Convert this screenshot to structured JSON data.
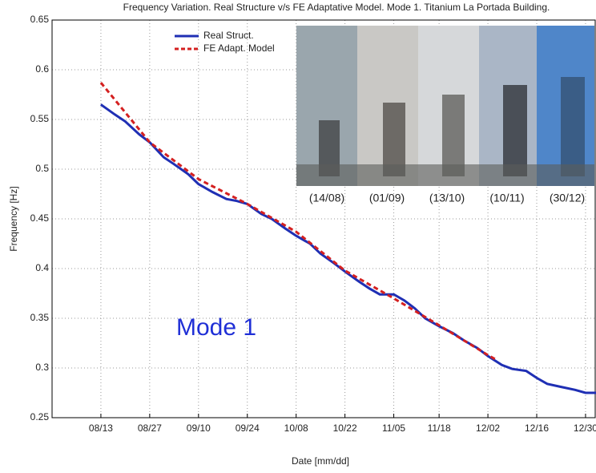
{
  "chart_data": {
    "type": "line",
    "title": "Frequency Variation. Real Structure v/s FE Adaptative Model. Mode 1. Titanium La Portada Building.",
    "x_label": "Date [mm/dd]",
    "y_label": "Frequency [Hz]",
    "xlim": [
      "07/30",
      "01/02"
    ],
    "xticks": [
      "08/13",
      "08/27",
      "09/10",
      "09/24",
      "10/08",
      "10/22",
      "11/05",
      "11/18",
      "12/02",
      "12/16",
      "12/30"
    ],
    "ylim": [
      0.25,
      0.65
    ],
    "yticks": [
      0.25,
      0.3,
      0.35,
      0.4,
      0.45,
      0.5,
      0.55,
      0.6,
      0.65
    ],
    "grid": true,
    "legend": "upper left",
    "series": [
      {
        "name": "Real Struct.",
        "color": "#1f2fb4",
        "style": "solid",
        "x": [
          "08/13",
          "08/17",
          "08/20",
          "08/24",
          "08/27",
          "08/31",
          "09/03",
          "09/07",
          "09/10",
          "09/14",
          "09/18",
          "09/21",
          "09/24",
          "09/28",
          "10/01",
          "10/05",
          "10/08",
          "10/12",
          "10/15",
          "10/19",
          "10/22",
          "10/26",
          "10/29",
          "11/01",
          "11/05",
          "11/08",
          "11/11",
          "11/14",
          "11/18",
          "11/22",
          "11/25",
          "11/29",
          "12/02",
          "12/06",
          "12/09",
          "12/13",
          "12/16",
          "12/19",
          "12/23",
          "12/27",
          "12/30",
          "01/02"
        ],
        "values": [
          0.565,
          0.555,
          0.548,
          0.535,
          0.527,
          0.512,
          0.505,
          0.495,
          0.485,
          0.477,
          0.47,
          0.468,
          0.465,
          0.455,
          0.45,
          0.44,
          0.433,
          0.425,
          0.415,
          0.405,
          0.397,
          0.387,
          0.38,
          0.374,
          0.374,
          0.368,
          0.36,
          0.35,
          0.342,
          0.335,
          0.328,
          0.32,
          0.312,
          0.303,
          0.299,
          0.297,
          0.29,
          0.284,
          0.281,
          0.278,
          0.275,
          0.275
        ]
      },
      {
        "name": "FE Adapt. Model",
        "color": "#d42020",
        "style": "dashed",
        "x": [
          "08/13",
          "08/27",
          "09/10",
          "09/24",
          "10/08",
          "10/22",
          "11/05",
          "11/18",
          "12/02",
          "12/04"
        ],
        "values": [
          0.587,
          0.527,
          0.49,
          0.465,
          0.437,
          0.398,
          0.37,
          0.343,
          0.313,
          0.309
        ]
      }
    ],
    "annotations": [
      "Mode 1"
    ],
    "photo_captions": [
      "(14/08)",
      "(01/09)",
      "(13/10)",
      "(10/11)",
      "(30/12)"
    ]
  }
}
